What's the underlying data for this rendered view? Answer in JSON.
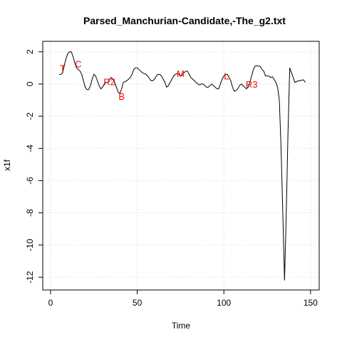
{
  "chart_data": {
    "type": "line",
    "title": "Parsed_Manchurian-Candidate,-The_g2.txt",
    "xlabel": "Time",
    "ylabel": "x1f",
    "x": [
      5,
      6,
      7,
      8,
      9,
      10,
      11,
      12,
      13,
      14,
      15,
      16,
      17,
      18,
      19,
      20,
      21,
      22,
      23,
      24,
      25,
      26,
      27,
      28,
      29,
      30,
      31,
      32,
      33,
      34,
      35,
      36,
      37,
      38,
      39,
      40,
      41,
      42,
      43,
      44,
      45,
      46,
      47,
      48,
      49,
      50,
      51,
      52,
      53,
      54,
      55,
      56,
      57,
      58,
      59,
      60,
      61,
      62,
      63,
      64,
      65,
      66,
      67,
      68,
      69,
      70,
      71,
      72,
      73,
      74,
      75,
      76,
      77,
      78,
      79,
      80,
      81,
      82,
      83,
      84,
      85,
      86,
      87,
      88,
      89,
      90,
      91,
      92,
      93,
      94,
      95,
      96,
      97,
      98,
      99,
      100,
      101,
      102,
      103,
      104,
      105,
      106,
      107,
      108,
      109,
      110,
      111,
      112,
      113,
      114,
      115,
      116,
      117,
      118,
      119,
      120,
      121,
      122,
      123,
      124,
      125,
      126,
      127,
      128,
      129,
      130,
      131,
      132,
      133,
      134,
      135,
      136,
      137,
      138,
      139,
      140,
      141,
      142,
      143,
      144,
      145,
      146,
      147
    ],
    "series": [
      {
        "name": "x1f",
        "color": "#000000",
        "values": [
          0.6,
          0.6,
          0.7,
          1.2,
          1.6,
          1.9,
          2.0,
          2.0,
          1.7,
          1.3,
          1.0,
          0.9,
          0.8,
          0.6,
          0.2,
          -0.2,
          -0.35,
          -0.35,
          -0.1,
          0.3,
          0.6,
          0.5,
          0.2,
          -0.1,
          -0.3,
          -0.2,
          0,
          0.1,
          0.1,
          0.3,
          0.4,
          0.3,
          0.1,
          -0.2,
          -0.5,
          -0.6,
          -0.3,
          0.1,
          0.15,
          0.2,
          0.3,
          0.4,
          0.6,
          0.9,
          1.0,
          1.0,
          0.9,
          0.8,
          0.7,
          0.65,
          0.6,
          0.5,
          0.35,
          0.2,
          0.2,
          0.3,
          0.5,
          0.6,
          0.6,
          0.5,
          0.3,
          0.1,
          -0.2,
          -0.1,
          0.1,
          0.3,
          0.5,
          0.6,
          0.65,
          0.6,
          0.5,
          0.55,
          0.7,
          0.8,
          0.8,
          0.6,
          0.4,
          0.3,
          0.2,
          0.1,
          0,
          -0.05,
          0,
          0,
          -0.1,
          -0.2,
          -0.2,
          -0.1,
          0,
          -0.1,
          -0.2,
          -0.3,
          -0.3,
          0,
          0.3,
          0.5,
          0.6,
          0.6,
          0.4,
          0.2,
          -0.2,
          -0.45,
          -0.4,
          -0.3,
          -0.1,
          0,
          -0.1,
          -0.2,
          -0.3,
          -0.2,
          0.1,
          0.5,
          0.9,
          1.1,
          1.15,
          1.1,
          1.1,
          0.9,
          0.8,
          0.5,
          0.5,
          0.5,
          0.4,
          0.45,
          0.3,
          0.1,
          -0.2,
          -1,
          -4,
          -8,
          -12.2,
          -8,
          -3,
          1.0,
          0.7,
          0.4,
          0.1,
          0.15,
          0.2,
          0.2,
          0.25,
          0.25,
          0.1
        ]
      }
    ],
    "annotations": [
      {
        "text": "T",
        "x": 7,
        "y": 1.0,
        "color": "#ff0000"
      },
      {
        "text": "C",
        "x": 16,
        "y": 1.25,
        "color": "#ff0000"
      },
      {
        "text": "R2",
        "x": 34,
        "y": 0.15,
        "color": "#ff0000"
      },
      {
        "text": "B",
        "x": 41,
        "y": -0.75,
        "color": "#ff0000"
      },
      {
        "text": "M",
        "x": 75,
        "y": 0.65,
        "color": "#ff0000"
      },
      {
        "text": "L",
        "x": 101.5,
        "y": 0.5,
        "color": "#ff0000"
      },
      {
        "text": "R3",
        "x": 116,
        "y": 0.0,
        "color": "#ff0000"
      }
    ],
    "xlim": [
      -4.5,
      155
    ],
    "ylim": [
      -12.79,
      2.65
    ],
    "xticks": [
      0,
      50,
      100,
      150
    ],
    "yticks": [
      2,
      0,
      -2,
      -4,
      -6,
      -8,
      -10,
      -12
    ],
    "grid": true
  }
}
